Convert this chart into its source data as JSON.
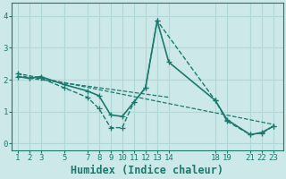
{
  "xlabel": "Humidex (Indice chaleur)",
  "bg_color": "#cce8e8",
  "grid_color": "#b0d8d8",
  "line_color": "#1a7a6e",
  "ylim": [
    -0.2,
    4.4
  ],
  "xlim": [
    0.5,
    23.8
  ],
  "series": [
    {
      "x": [
        1,
        2,
        3,
        5,
        7,
        8,
        9,
        10,
        11,
        12,
        13,
        18,
        19,
        21,
        22,
        23
      ],
      "y": [
        2.2,
        2.05,
        2.05,
        1.75,
        1.45,
        1.1,
        0.5,
        0.5,
        1.3,
        1.75,
        3.85,
        1.35,
        0.7,
        0.28,
        0.33,
        0.55
      ],
      "linestyle": "--",
      "marker": "+",
      "lw": 1.0
    },
    {
      "x": [
        1,
        2,
        3,
        5,
        7,
        8,
        9,
        10,
        11,
        12,
        13,
        14,
        18,
        19,
        21,
        22,
        23
      ],
      "y": [
        2.1,
        2.05,
        2.1,
        1.85,
        1.65,
        1.5,
        0.9,
        0.85,
        1.3,
        1.75,
        3.85,
        2.55,
        1.35,
        0.75,
        0.28,
        0.35,
        0.55
      ],
      "linestyle": "-",
      "marker": "+",
      "lw": 1.2
    },
    {
      "x": [
        1,
        23
      ],
      "y": [
        2.2,
        0.6
      ],
      "linestyle": "--",
      "marker": null,
      "lw": 0.9
    },
    {
      "x": [
        1,
        14
      ],
      "y": [
        2.1,
        1.45
      ],
      "linestyle": "--",
      "marker": null,
      "lw": 0.9
    }
  ],
  "xticks": [
    1,
    2,
    3,
    5,
    7,
    8,
    9,
    10,
    11,
    12,
    13,
    14,
    18,
    19,
    21,
    22,
    23
  ],
  "yticks": [
    0,
    1,
    2,
    3,
    4
  ],
  "tick_fontsize": 6.5,
  "label_fontsize": 8.5
}
